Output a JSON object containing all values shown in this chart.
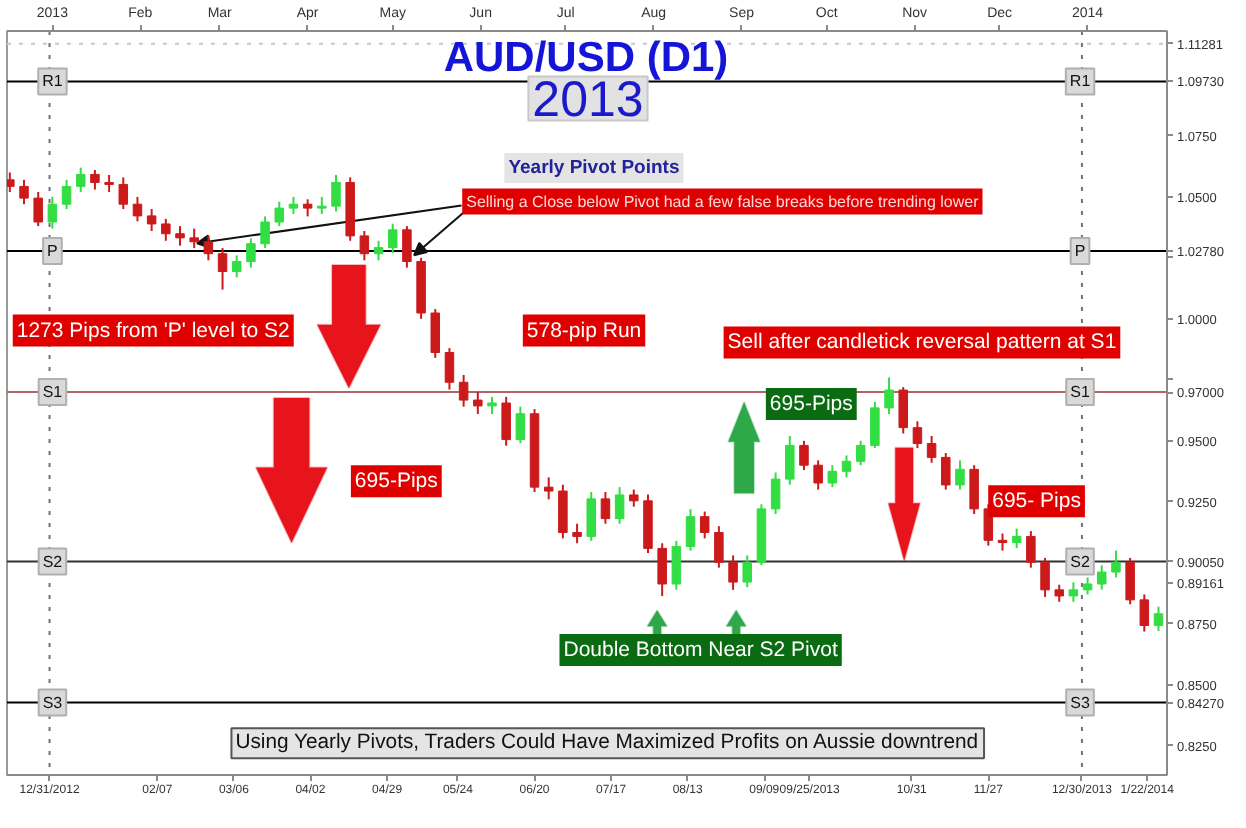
{
  "chart_data": {
    "type": "candlestick",
    "title": "AUD/USD (D1)",
    "subtitle": "2013",
    "annotations": [
      "Yearly Pivot Points",
      {
        "text": "Selling a Close below Pivot had a few false breaks before trending lower",
        "x": "2013-02-21",
        "y": 1.031
      },
      "1273 Pips from 'P' level to S2",
      "578-pip Run",
      "Sell after candletick reversal pattern at S1",
      "695-Pips",
      "695-Pips",
      "695- Pips",
      "Double Bottom Near S2 Pivot",
      "Using Yearly Pivots, Traders Could Have Maximized Profits on Aussie downtrend"
    ],
    "x": [
      "2012-12-17",
      "2012-12-22",
      "2012-12-27",
      "2013-01-01",
      "2013-01-06",
      "2013-01-11",
      "2013-01-16",
      "2013-01-21",
      "2013-01-26",
      "2013-01-31",
      "2013-02-05",
      "2013-02-10",
      "2013-02-15",
      "2013-02-20",
      "2013-02-25",
      "2013-03-02",
      "2013-03-07",
      "2013-03-12",
      "2013-03-17",
      "2013-03-22",
      "2013-03-27",
      "2013-04-01",
      "2013-04-06",
      "2013-04-11",
      "2013-04-16",
      "2013-04-21",
      "2013-04-26",
      "2013-05-01",
      "2013-05-06",
      "2013-05-11",
      "2013-05-16",
      "2013-05-21",
      "2013-05-26",
      "2013-05-31",
      "2013-06-05",
      "2013-06-10",
      "2013-06-15",
      "2013-06-20",
      "2013-06-25",
      "2013-06-30",
      "2013-07-05",
      "2013-07-10",
      "2013-07-15",
      "2013-07-20",
      "2013-07-25",
      "2013-07-30",
      "2013-08-04",
      "2013-08-09",
      "2013-08-14",
      "2013-08-19",
      "2013-08-24",
      "2013-08-29",
      "2013-09-03",
      "2013-09-08",
      "2013-09-13",
      "2013-09-18",
      "2013-09-23",
      "2013-09-28",
      "2013-10-03",
      "2013-10-08",
      "2013-10-13",
      "2013-10-18",
      "2013-10-23",
      "2013-10-28",
      "2013-11-02",
      "2013-11-07",
      "2013-11-12",
      "2013-11-17",
      "2013-11-22",
      "2013-11-27",
      "2013-12-02",
      "2013-12-07",
      "2013-12-12",
      "2013-12-17",
      "2013-12-22",
      "2013-12-27",
      "2014-01-01",
      "2014-01-06",
      "2014-01-11",
      "2014-01-16",
      "2014-01-21",
      "2014-01-26"
    ],
    "ohlc": [
      [
        1.057,
        1.06,
        1.052,
        1.0543
      ],
      [
        1.0543,
        1.057,
        1.047,
        1.0495
      ],
      [
        1.0495,
        1.052,
        1.038,
        1.0397
      ],
      [
        1.0397,
        1.05,
        1.037,
        1.047
      ],
      [
        1.047,
        1.057,
        1.045,
        1.0543
      ],
      [
        1.0543,
        1.062,
        1.052,
        1.0592
      ],
      [
        1.0592,
        1.061,
        1.053,
        1.0559
      ],
      [
        1.0559,
        1.059,
        1.052,
        1.0551
      ],
      [
        1.0551,
        1.058,
        1.045,
        1.047
      ],
      [
        1.047,
        1.05,
        1.04,
        1.0422
      ],
      [
        1.0422,
        1.045,
        1.036,
        1.0389
      ],
      [
        1.0389,
        1.041,
        1.032,
        1.0349
      ],
      [
        1.0349,
        1.038,
        1.03,
        1.0332
      ],
      [
        1.0332,
        1.037,
        1.029,
        1.0316
      ],
      [
        1.0316,
        1.034,
        1.024,
        1.0267
      ],
      [
        1.0267,
        1.029,
        1.012,
        1.0194
      ],
      [
        1.0194,
        1.026,
        1.017,
        1.0235
      ],
      [
        1.0235,
        1.033,
        1.021,
        1.0308
      ],
      [
        1.0308,
        1.042,
        1.029,
        1.0397
      ],
      [
        1.0397,
        1.048,
        1.038,
        1.0454
      ],
      [
        1.0454,
        1.05,
        1.043,
        1.047
      ],
      [
        1.047,
        1.049,
        1.042,
        1.0454
      ],
      [
        1.0454,
        1.05,
        1.043,
        1.0462
      ],
      [
        1.0462,
        1.059,
        1.044,
        1.0559
      ],
      [
        1.0559,
        1.058,
        1.032,
        1.034
      ],
      [
        1.034,
        1.036,
        1.024,
        1.0267
      ],
      [
        1.0267,
        1.032,
        1.024,
        1.0292
      ],
      [
        1.0292,
        1.039,
        1.027,
        1.0365
      ],
      [
        1.0365,
        1.038,
        1.021,
        1.0235
      ],
      [
        1.0235,
        1.025,
        1.0,
        1.0024
      ],
      [
        1.0024,
        1.004,
        0.984,
        0.9862
      ],
      [
        0.9862,
        0.988,
        0.971,
        0.974
      ],
      [
        0.974,
        0.977,
        0.964,
        0.9667
      ],
      [
        0.9667,
        0.97,
        0.961,
        0.9643
      ],
      [
        0.9643,
        0.968,
        0.961,
        0.9655
      ],
      [
        0.9655,
        0.968,
        0.948,
        0.9505
      ],
      [
        0.9505,
        0.964,
        0.949,
        0.9611
      ],
      [
        0.9611,
        0.963,
        0.929,
        0.931
      ],
      [
        0.931,
        0.935,
        0.926,
        0.9294
      ],
      [
        0.9294,
        0.932,
        0.91,
        0.9124
      ],
      [
        0.9124,
        0.916,
        0.908,
        0.9108
      ],
      [
        0.9108,
        0.929,
        0.909,
        0.9262
      ],
      [
        0.9262,
        0.929,
        0.916,
        0.9181
      ],
      [
        0.9181,
        0.931,
        0.916,
        0.9278
      ],
      [
        0.9278,
        0.93,
        0.923,
        0.9254
      ],
      [
        0.9254,
        0.928,
        0.904,
        0.9059
      ],
      [
        0.9059,
        0.908,
        0.8864,
        0.8913
      ],
      [
        0.8913,
        0.909,
        0.889,
        0.9067
      ],
      [
        0.9067,
        0.922,
        0.905,
        0.9189
      ],
      [
        0.9189,
        0.921,
        0.91,
        0.9124
      ],
      [
        0.9124,
        0.915,
        0.898,
        0.9002
      ],
      [
        0.9002,
        0.903,
        0.8889,
        0.8921
      ],
      [
        0.8921,
        0.903,
        0.89,
        0.9002
      ],
      [
        0.9002,
        0.924,
        0.899,
        0.9221
      ],
      [
        0.9221,
        0.937,
        0.92,
        0.9343
      ],
      [
        0.9343,
        0.952,
        0.932,
        0.9481
      ],
      [
        0.9481,
        0.95,
        0.938,
        0.94
      ],
      [
        0.94,
        0.942,
        0.93,
        0.9327
      ],
      [
        0.9327,
        0.94,
        0.931,
        0.9375
      ],
      [
        0.9375,
        0.944,
        0.935,
        0.9416
      ],
      [
        0.9416,
        0.95,
        0.94,
        0.9481
      ],
      [
        0.9481,
        0.966,
        0.947,
        0.9635
      ],
      [
        0.9635,
        0.976,
        0.961,
        0.9708
      ],
      [
        0.9708,
        0.972,
        0.953,
        0.9554
      ],
      [
        0.9554,
        0.958,
        0.947,
        0.9489
      ],
      [
        0.9489,
        0.952,
        0.941,
        0.9432
      ],
      [
        0.9432,
        0.945,
        0.93,
        0.9319
      ],
      [
        0.9319,
        0.942,
        0.93,
        0.9383
      ],
      [
        0.9383,
        0.94,
        0.92,
        0.9221
      ],
      [
        0.9221,
        0.924,
        0.907,
        0.9092
      ],
      [
        0.9092,
        0.912,
        0.905,
        0.9083
      ],
      [
        0.9083,
        0.914,
        0.906,
        0.9108
      ],
      [
        0.9108,
        0.913,
        0.898,
        0.9002
      ],
      [
        0.9002,
        0.902,
        0.886,
        0.8889
      ],
      [
        0.8889,
        0.891,
        0.884,
        0.8864
      ],
      [
        0.8864,
        0.892,
        0.884,
        0.8889
      ],
      [
        0.8889,
        0.894,
        0.887,
        0.8913
      ],
      [
        0.8913,
        0.899,
        0.889,
        0.8962
      ],
      [
        0.8962,
        0.905,
        0.894,
        0.9002
      ],
      [
        0.9002,
        0.902,
        0.883,
        0.8848
      ],
      [
        0.8848,
        0.887,
        0.8718,
        0.8743
      ],
      [
        0.8743,
        0.882,
        0.872,
        0.8791
      ]
    ],
    "colors": [
      "#cc1a1a",
      "#cc1a1a",
      "#cc1a1a",
      "#33dd44",
      "#33dd44",
      "#33dd44",
      "#cc1a1a",
      "#cc1a1a",
      "#cc1a1a",
      "#cc1a1a",
      "#cc1a1a",
      "#cc1a1a",
      "#cc1a1a",
      "#cc1a1a",
      "#cc1a1a",
      "#cc1a1a",
      "#33dd44",
      "#33dd44",
      "#33dd44",
      "#33dd44",
      "#33dd44",
      "#cc1a1a",
      "#33dd44",
      "#33dd44",
      "#cc1a1a",
      "#cc1a1a",
      "#33dd44",
      "#33dd44",
      "#cc1a1a",
      "#cc1a1a",
      "#cc1a1a",
      "#cc1a1a",
      "#cc1a1a",
      "#cc1a1a",
      "#33dd44",
      "#cc1a1a",
      "#33dd44",
      "#cc1a1a",
      "#cc1a1a",
      "#cc1a1a",
      "#cc1a1a",
      "#33dd44",
      "#cc1a1a",
      "#33dd44",
      "#cc1a1a",
      "#cc1a1a",
      "#cc1a1a",
      "#33dd44",
      "#33dd44",
      "#cc1a1a",
      "#cc1a1a",
      "#cc1a1a",
      "#33dd44",
      "#33dd44",
      "#33dd44",
      "#33dd44",
      "#cc1a1a",
      "#cc1a1a",
      "#33dd44",
      "#33dd44",
      "#33dd44",
      "#33dd44",
      "#33dd44",
      "#cc1a1a",
      "#cc1a1a",
      "#cc1a1a",
      "#cc1a1a",
      "#33dd44",
      "#cc1a1a",
      "#cc1a1a",
      "#cc1a1a",
      "#33dd44",
      "#cc1a1a",
      "#cc1a1a",
      "#cc1a1a",
      "#33dd44",
      "#33dd44",
      "#33dd44",
      "#33dd44",
      "#cc1a1a",
      "#cc1a1a",
      "#33dd44"
    ],
    "xlim": [
      "2012-12-16",
      "2014-01-29"
    ],
    "xticks": [
      {
        "value": "2012-12-31",
        "label": "12/31/2012"
      },
      {
        "value": "2013-02-07",
        "label": "02/07"
      },
      {
        "value": "2013-03-06",
        "label": "03/06"
      },
      {
        "value": "2013-04-02",
        "label": "04/02"
      },
      {
        "value": "2013-04-29",
        "label": "04/29"
      },
      {
        "value": "2013-05-24",
        "label": "05/24"
      },
      {
        "value": "2013-06-20",
        "label": "06/20"
      },
      {
        "value": "2013-07-17",
        "label": "07/17"
      },
      {
        "value": "2013-08-13",
        "label": "08/13"
      },
      {
        "value": "2013-09-09",
        "label": "09/09"
      },
      {
        "value": "2013-09-25",
        "label": "09/25/2013"
      },
      {
        "value": "2013-10-31",
        "label": "10/31"
      },
      {
        "value": "2013-11-27",
        "label": "11/27"
      },
      {
        "value": "2013-12-30",
        "label": "12/30/2013"
      },
      {
        "value": "2014-01-22",
        "label": "1/22/2014"
      }
    ],
    "x2lim": [
      "2012-12-16",
      "2014-01-29"
    ],
    "x2ticks": [
      {
        "value": "2013-01-01",
        "label": "2013"
      },
      {
        "value": "2013-02-01",
        "label": "Feb"
      },
      {
        "value": "2013-03-01",
        "label": "Mar"
      },
      {
        "value": "2013-04-01",
        "label": "Apr"
      },
      {
        "value": "2013-05-01",
        "label": "May"
      },
      {
        "value": "2013-06-01",
        "label": "Jun"
      },
      {
        "value": "2013-07-01",
        "label": "Jul"
      },
      {
        "value": "2013-08-01",
        "label": "Aug"
      },
      {
        "value": "2013-09-01",
        "label": "Sep"
      },
      {
        "value": "2013-10-01",
        "label": "Oct"
      },
      {
        "value": "2013-11-01",
        "label": "Nov"
      },
      {
        "value": "2013-12-01",
        "label": "Dec"
      },
      {
        "value": "2014-01-01",
        "label": "2014"
      }
    ],
    "ylim": [
      0.813,
      1.118
    ],
    "yticks": [
      {
        "value": 0.825,
        "label": "0.8250"
      },
      {
        "value": 0.8427,
        "label": "0.84270"
      },
      {
        "value": 0.85,
        "label": "0.8500"
      },
      {
        "value": 0.875,
        "label": "0.8750"
      },
      {
        "value": 0.89161,
        "label": "0.89161"
      },
      {
        "value": 0.9005,
        "label": "0.90050"
      },
      {
        "value": 0.925,
        "label": "0.9250"
      },
      {
        "value": 0.95,
        "label": "0.9500"
      },
      {
        "value": 0.97,
        "label": "0.97000"
      },
      {
        "value": 0.975,
        "label": null
      },
      {
        "value": 1.0,
        "label": "1.0000"
      },
      {
        "value": 1.025,
        "label": null
      },
      {
        "value": 1.0278,
        "label": "1.02780"
      },
      {
        "value": 1.05,
        "label": "1.0500"
      },
      {
        "value": 1.075,
        "label": "1.0750"
      },
      {
        "value": 1.0973,
        "label": "1.09730"
      },
      {
        "value": 1.11281,
        "label": "1.11281"
      }
    ],
    "ref_lines": [
      {
        "axis": "y",
        "value": 1.0973,
        "label": "R1",
        "color": "#000000"
      },
      {
        "axis": "y",
        "value": 1.0278,
        "label": "P",
        "color": "#000000"
      },
      {
        "axis": "y",
        "value": 0.97,
        "label": "S1",
        "color": "#b06464"
      },
      {
        "axis": "y",
        "value": 0.9005,
        "label": "S2",
        "color": "#333333"
      },
      {
        "axis": "y",
        "value": 0.8427,
        "label": "S3",
        "color": "#000000"
      },
      {
        "axis": "y",
        "value": 1.11281,
        "color": "#c8c8c8",
        "line_style": "dotted"
      },
      {
        "axis": "x",
        "value": "2012-12-31",
        "color": "#707070",
        "line_style": "dotted"
      },
      {
        "axis": "x",
        "value": "2013-12-30",
        "color": "#707070",
        "line_style": "dotted"
      }
    ]
  }
}
